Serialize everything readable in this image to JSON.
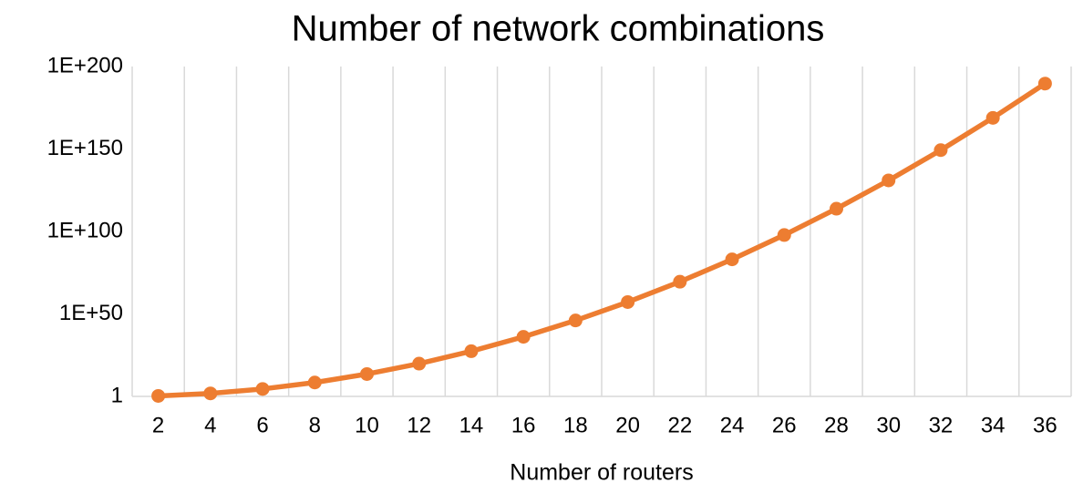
{
  "chart_data": {
    "type": "line",
    "title": "Number of network combinations",
    "x_label": "Number of routers",
    "categories": [
      "2",
      "4",
      "6",
      "8",
      "10",
      "12",
      "14",
      "16",
      "18",
      "20",
      "22",
      "24",
      "26",
      "28",
      "30",
      "32",
      "34",
      "36"
    ],
    "series": [
      {
        "name": "Number of network combinations",
        "color": "#ED7D31",
        "values": [
          2,
          64,
          32768,
          268435456,
          35180000000000.0,
          7.38e+19,
          2.476e+27,
          1.329e+36,
          1.142e+46,
          1.569e+57,
          3.45e+69,
          1.214e+83,
          6.84e+97,
          6.16e+113,
          8.87e+130,
          2.05e+149,
          7.54e+168,
          4.45e+189
        ]
      }
    ],
    "ylim": [
      1,
      1e+200
    ],
    "yscale": "log",
    "yticks": [
      1,
      {
        "value": 1e+50,
        "label": "1E+50"
      },
      {
        "value": 1e+100,
        "label": "1E+100"
      },
      {
        "value": 1e+150,
        "label": "1E+150"
      },
      {
        "value": 1e+200,
        "label": "1E+200"
      }
    ],
    "grid": "x"
  }
}
